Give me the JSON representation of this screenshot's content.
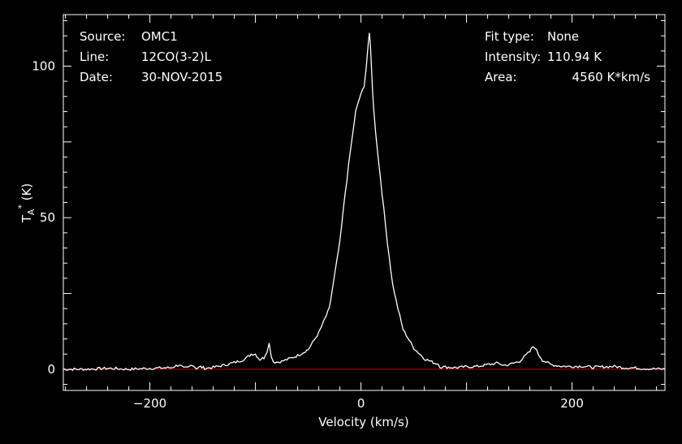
{
  "chart_data": {
    "type": "line",
    "header_left": [
      {
        "key": "Source:",
        "value": "OMC1"
      },
      {
        "key": "Line:",
        "value": "12CO(3-2)L"
      },
      {
        "key": "Date:",
        "value": "30-NOV-2015"
      }
    ],
    "header_right": [
      {
        "key": "Fit type:",
        "value": "None"
      },
      {
        "key": "Intensity:",
        "value": "110.94 K"
      },
      {
        "key": "Area:",
        "value": "4560 K*km/s"
      }
    ],
    "xlabel": "Velocity (km/s)",
    "ylabel": "T_A^* (K)",
    "xlim": [
      -282,
      288
    ],
    "ylim": [
      -7,
      117
    ],
    "x_ticks": [
      -200,
      0,
      200
    ],
    "y_ticks": [
      0,
      50,
      100
    ],
    "baseline": {
      "y": 0,
      "color": "#c00000"
    },
    "series": [
      {
        "color": "#ffffff",
        "x": [
          -282,
          -260,
          -240,
          -220,
          -200,
          -180,
          -172,
          -168,
          -164,
          -160,
          -156,
          -152,
          -148,
          -140,
          -130,
          -120,
          -110,
          -104,
          -100,
          -96,
          -92,
          -89,
          -87,
          -85,
          -83,
          -80,
          -75,
          -70,
          -60,
          -50,
          -40,
          -30,
          -20,
          -15,
          -10,
          -5,
          0,
          3,
          5,
          7,
          8,
          9,
          10,
          11,
          12,
          14,
          16,
          20,
          25,
          30,
          35,
          40,
          50,
          60,
          70,
          73,
          75,
          80,
          90,
          100,
          110,
          120,
          130,
          135,
          140,
          150,
          155,
          160,
          163,
          165,
          168,
          172,
          180,
          190,
          200,
          210,
          220,
          230,
          240,
          250,
          260,
          270,
          280,
          288
        ],
        "y": [
          0,
          0,
          0.3,
          0,
          0.3,
          0.5,
          1.5,
          0.3,
          0.5,
          1.6,
          0.3,
          0.8,
          0.3,
          0.6,
          1.3,
          2.2,
          3.3,
          5,
          5,
          3.2,
          3.8,
          6,
          8.5,
          4.5,
          2.5,
          2.3,
          2.6,
          3.2,
          4.5,
          6.5,
          12,
          20,
          42,
          58,
          72,
          85,
          91,
          93,
          100,
          108,
          111,
          106,
          99,
          92,
          86,
          78,
          71,
          58,
          42,
          28,
          20,
          13,
          7,
          3.5,
          2,
          1.8,
          0.8,
          0.7,
          0.5,
          0.8,
          0.9,
          1.5,
          2,
          1.3,
          1.5,
          2.6,
          4.2,
          5.8,
          7.5,
          7.2,
          5,
          3,
          1.5,
          1,
          0.9,
          1,
          0.6,
          0.8,
          0.9,
          0.5,
          0.4,
          0.2,
          0.1,
          0
        ]
      }
    ]
  }
}
